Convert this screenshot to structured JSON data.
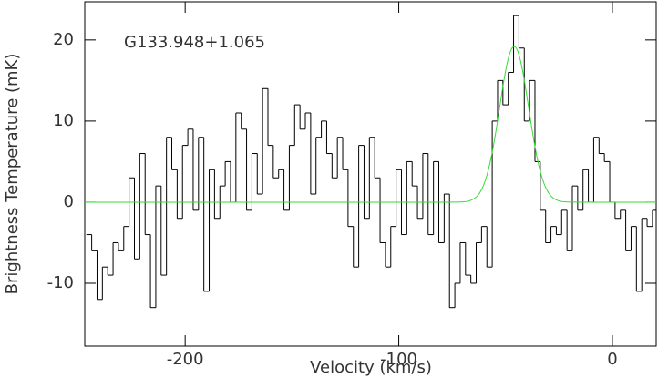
{
  "chart_data": {
    "type": "step",
    "annotation": "G133.948+1.065",
    "x_label": "Velocity (km/s)",
    "y_label": "Brightness Temperature (mK)",
    "xlim": [
      -247,
      20.5
    ],
    "ylim": [
      -17.75,
      24.7
    ],
    "xticks": [
      -200,
      -100,
      0
    ],
    "yticks": [
      -10,
      0,
      10,
      20
    ],
    "x": [
      -245,
      -242.5,
      -240,
      -237.5,
      -235,
      -232.5,
      -230,
      -227.5,
      -225,
      -222.5,
      -220,
      -217.5,
      -215,
      -212.5,
      -210,
      -207.5,
      -205,
      -202.5,
      -200,
      -197.5,
      -195,
      -192.5,
      -190,
      -187.5,
      -185,
      -182.5,
      -180,
      -177.5,
      -175,
      -172.5,
      -170,
      -167.5,
      -165,
      -162.5,
      -160,
      -157.5,
      -155,
      -152.5,
      -150,
      -147.5,
      -145,
      -142.5,
      -140,
      -137.5,
      -135,
      -132.5,
      -130,
      -127.5,
      -125,
      -122.5,
      -120,
      -117.5,
      -115,
      -112.5,
      -110,
      -107.5,
      -105,
      -102.5,
      -100,
      -97.5,
      -95,
      -92.5,
      -90,
      -87.5,
      -85,
      -82.5,
      -80,
      -77.5,
      -75,
      -72.5,
      -70,
      -67.5,
      -65,
      -62.5,
      -60,
      -57.5,
      -55,
      -52.5,
      -50,
      -47.5,
      -45,
      -42.5,
      -40,
      -37.5,
      -35,
      -32.5,
      -30,
      -27.5,
      -25,
      -22.5,
      -20,
      -17.5,
      -15,
      -12.5,
      -10,
      -7.5,
      -5,
      -2.5,
      0,
      2.5,
      5,
      7.5,
      10,
      12.5,
      15,
      17.5,
      20
    ],
    "values": [
      -4,
      -6,
      -12,
      -8,
      -9,
      -5,
      -6,
      -3,
      3,
      -7,
      6,
      -4,
      -13,
      2,
      -9,
      8,
      4,
      -2,
      7,
      9,
      -1,
      8,
      -11,
      4,
      -2,
      2,
      5,
      0,
      11,
      9,
      -1,
      6,
      1,
      14,
      7,
      3,
      4,
      -1,
      7,
      12,
      9,
      11,
      1,
      8,
      10,
      6,
      3,
      8,
      4,
      -3,
      -8,
      7,
      -2,
      8,
      3,
      -5,
      -8,
      -3,
      4,
      -4,
      5,
      2,
      -2,
      6,
      -4,
      5,
      -5,
      1,
      -13,
      -10,
      -5,
      -9,
      -10,
      -5,
      -3,
      -8,
      10,
      15,
      12,
      16,
      23,
      19,
      10,
      15,
      5,
      -1,
      -5,
      -3,
      -4,
      -1,
      -6,
      2,
      -1,
      4,
      0,
      8,
      6,
      5,
      0,
      -2,
      -1,
      -6,
      -3,
      -11,
      -2,
      -3,
      -1
    ],
    "color": "#000000",
    "fit": {
      "amplitude": 19.2,
      "center": -46,
      "sigma": 6.8,
      "color": "#33dd33"
    }
  }
}
